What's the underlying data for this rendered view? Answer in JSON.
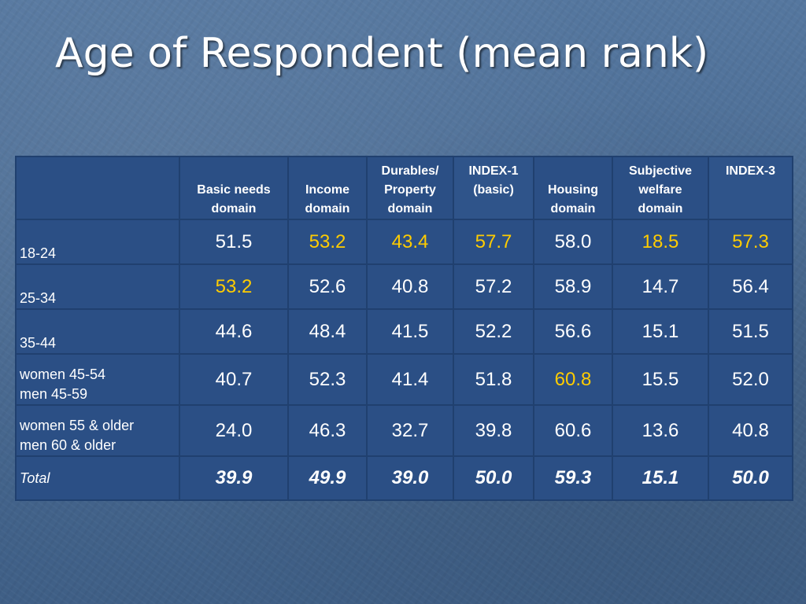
{
  "title": "Age of Respondent (mean rank)",
  "table": {
    "headers": [
      "",
      "Basic needs domain",
      "Income domain",
      "Durables/ Property domain",
      "INDEX-1 (basic)",
      "Housing domain",
      "Subjective welfare domain",
      "INDEX-3"
    ],
    "rows": [
      {
        "label_line1": "18-24",
        "label_line2": "",
        "values": [
          "51.5",
          "53.2",
          "43.4",
          "57.7",
          "58.0",
          "18.5",
          "57.3"
        ]
      },
      {
        "label_line1": "25-34",
        "label_line2": "",
        "values": [
          "53.2",
          "52.6",
          "40.8",
          "57.2",
          "58.9",
          "14.7",
          "56.4"
        ]
      },
      {
        "label_line1": "35-44",
        "label_line2": "",
        "values": [
          "44.6",
          "48.4",
          "41.5",
          "52.2",
          "56.6",
          "15.1",
          "51.5"
        ]
      },
      {
        "label_line1": "women 45-54",
        "label_line2": "men 45-59",
        "values": [
          "40.7",
          "52.3",
          "41.4",
          "51.8",
          "60.8",
          "15.5",
          "52.0"
        ]
      },
      {
        "label_line1": "women 55 & older",
        "label_line2": "men 60 & older",
        "values": [
          "24.0",
          "46.3",
          "32.7",
          "39.8",
          "60.6",
          "13.6",
          "40.8"
        ]
      },
      {
        "label_line1": "Total",
        "label_line2": "",
        "values": [
          "39.9",
          "49.9",
          "39.0",
          "50.0",
          "59.3",
          "15.1",
          "50.0"
        ]
      }
    ],
    "highlight_color": "#ffcc00"
  }
}
